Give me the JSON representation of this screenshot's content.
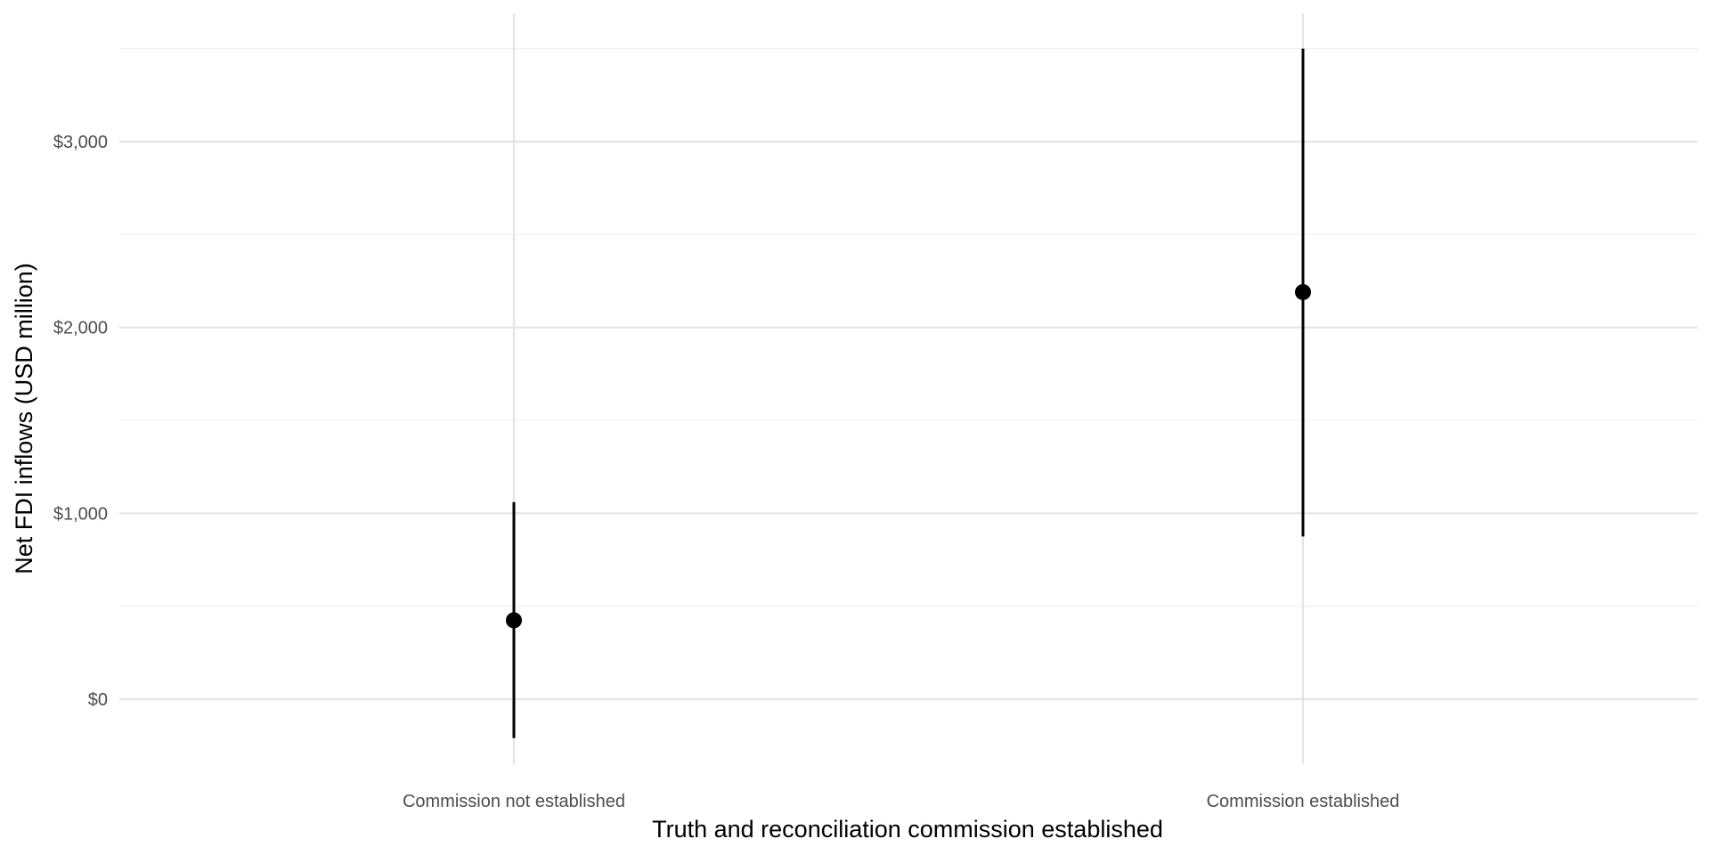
{
  "chart_data": {
    "type": "pointrange",
    "title": "",
    "xlabel": "Truth and reconciliation commission established",
    "ylabel": "Net FDI inflows (USD million)",
    "categories": [
      "Commission not established",
      "Commission established"
    ],
    "estimates": [
      424,
      2190
    ],
    "lower": [
      -210,
      875
    ],
    "upper": [
      1060,
      3500
    ],
    "ylim": [
      -350,
      3690
    ],
    "y_ticks": [
      0,
      1000,
      2000,
      3000
    ],
    "y_tick_labels": [
      "$0",
      "$1,000",
      "$2,000",
      "$3,000"
    ],
    "grid": true,
    "legend": "none",
    "colors": {
      "point": "#000000",
      "grid_major": "#e5e5e5",
      "grid_minor": "#f0f0f0",
      "tick_text": "#4d4d4d"
    }
  }
}
